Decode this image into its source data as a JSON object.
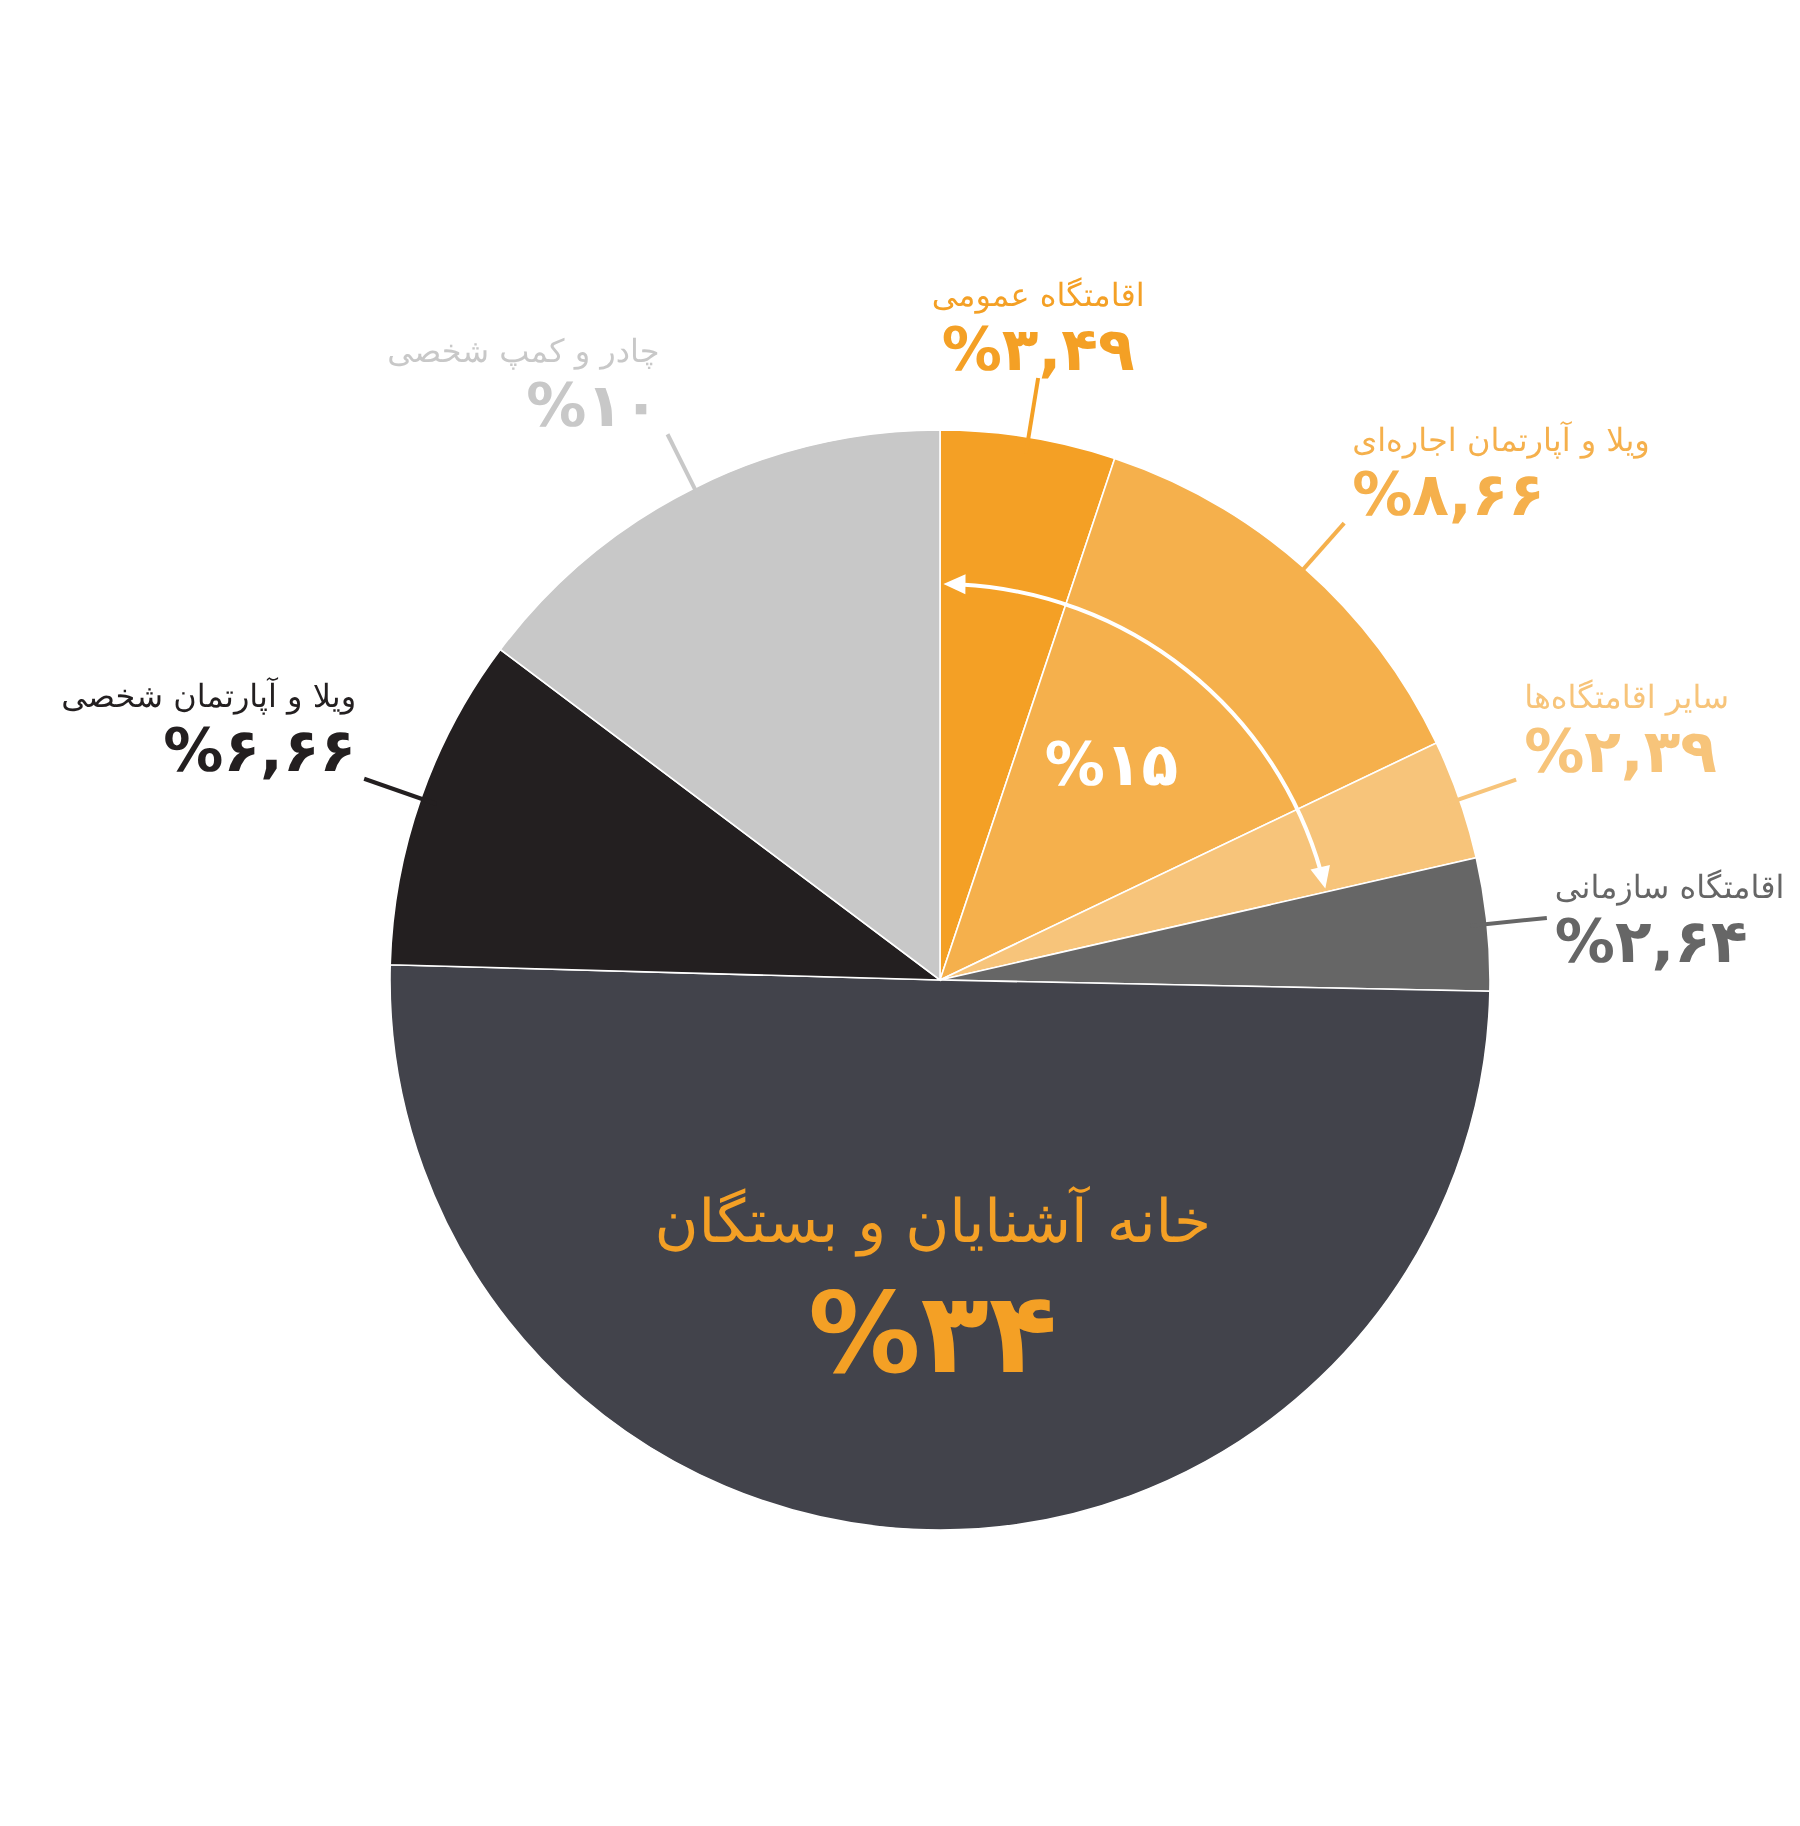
{
  "chart_data": {
    "type": "pie",
    "categories": [
      "اقامتگاه عمومی",
      "ویلا و آپارتمان اجاره‌ای",
      "سایر اقامتگاه‌ها",
      "اقامتگاه سازمانی",
      "خانه آشنایان و بستگان",
      "ویلا و آپارتمان شخصی",
      "چادر و کمپ شخصی"
    ],
    "values": [
      3.49,
      8.66,
      2.39,
      2.64,
      34,
      6.66,
      10
    ],
    "value_labels": [
      "%۳,۴۹",
      "%۸,۶۶",
      "%۲,۳۹",
      "%۲,۶۴",
      "%۳۴",
      "%۶,۶۶",
      "%۱۰"
    ],
    "colors": [
      "#f4a025",
      "#f5b04c",
      "#f7c47a",
      "#666666",
      "#42434b",
      "#231f20",
      "#c8c8c8"
    ],
    "annotations": [
      "%۱۵"
    ]
  }
}
